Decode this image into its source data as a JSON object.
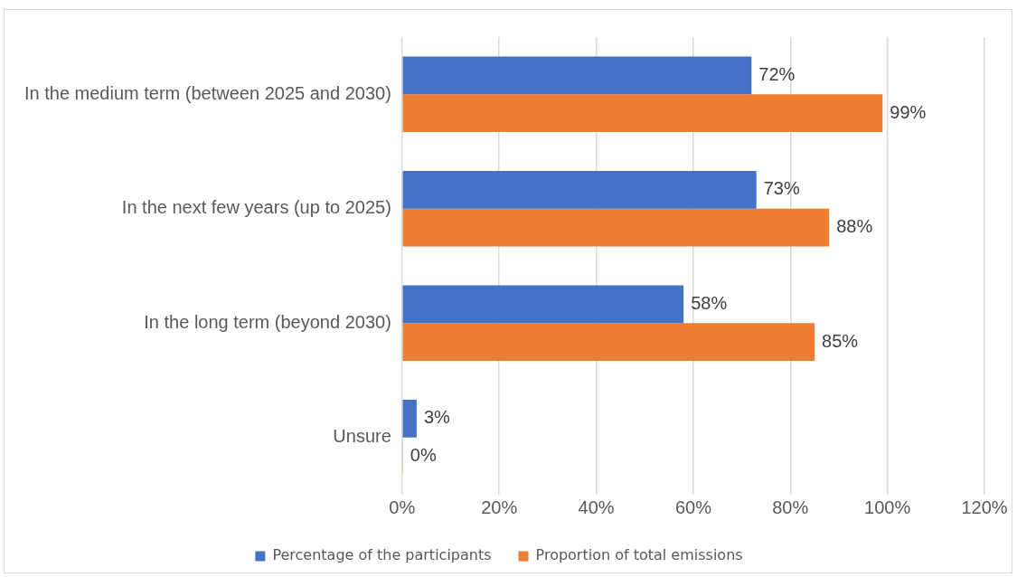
{
  "chart_data": {
    "type": "bar",
    "orientation": "horizontal",
    "categories": [
      "In the medium term (between 2025 and 2030)",
      "In the next few years (up to 2025)",
      "In the long term (beyond 2030)",
      "Unsure"
    ],
    "series": [
      {
        "name": "Percentage of the participants",
        "color": "#4472c4",
        "values": [
          72,
          73,
          58,
          3
        ],
        "value_labels": [
          "72%",
          "73%",
          "58%",
          "3%"
        ]
      },
      {
        "name": "Proportion of total emissions",
        "color": "#ed7d31",
        "values": [
          99,
          88,
          85,
          0
        ],
        "value_labels": [
          "99%",
          "88%",
          "85%",
          "0%"
        ]
      }
    ],
    "xlim": [
      0,
      120
    ],
    "xticks": [
      {
        "value": 0,
        "label": "0%"
      },
      {
        "value": 20,
        "label": "20%"
      },
      {
        "value": 40,
        "label": "40%"
      },
      {
        "value": 60,
        "label": "60%"
      },
      {
        "value": 80,
        "label": "80%"
      },
      {
        "value": 100,
        "label": "100%"
      },
      {
        "value": 120,
        "label": "120%"
      }
    ],
    "grid": "x",
    "legend": "bottom"
  }
}
